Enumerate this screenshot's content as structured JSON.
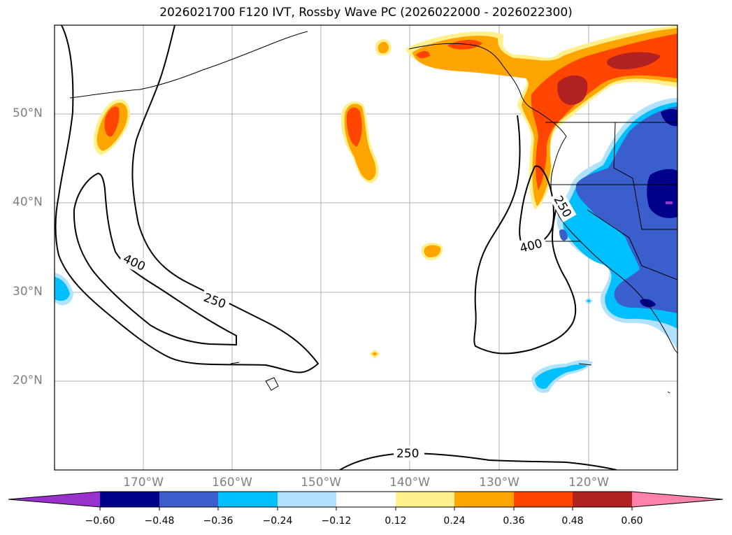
{
  "title": "2026021700 F120 IVT, Rossby Wave PC (2026022000 - 2026022300)",
  "lat_labels": [
    "50°N",
    "40°N",
    "30°N",
    "20°N"
  ],
  "lon_labels": [
    "170°W",
    "160°W",
    "150°W",
    "140°W",
    "130°W",
    "120°W"
  ],
  "contour_labels": [
    "400",
    "250",
    "250",
    "400",
    "250"
  ],
  "colorbar": {
    "ticks": [
      "−0.60",
      "−0.48",
      "−0.36",
      "−0.24",
      "−0.12",
      "0.12",
      "0.24",
      "0.36",
      "0.48",
      "0.60"
    ],
    "colors": [
      "#9932cc",
      "#00008b",
      "#3a5fcd",
      "#00bfff",
      "#b0e2ff",
      "#ffffff",
      "#fff08c",
      "#ffa500",
      "#ff4500",
      "#b22222",
      "#ff82ab"
    ]
  },
  "palette": {
    "yellow": "#fff08c",
    "orange": "#ffa500",
    "orangered": "#ff4500",
    "firebrick": "#b22222",
    "lightblue": "#b0e2ff",
    "skyblue": "#00bfff",
    "royal": "#3a5fcd",
    "navy": "#00008b",
    "purple": "#9932cc"
  }
}
